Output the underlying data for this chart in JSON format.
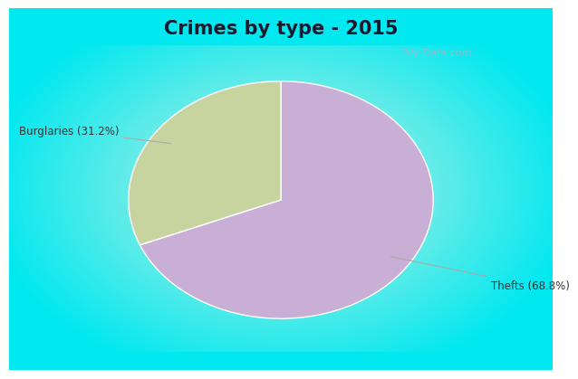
{
  "title": "Crimes by type - 2015",
  "slices": [
    68.8,
    31.2
  ],
  "labels": [
    "Thefts (68.8%)",
    "Burglaries (31.2%)"
  ],
  "colors": [
    "#c9aed6",
    "#c8d4a0"
  ],
  "bg_cyan": "#00e8f0",
  "bg_mint": "#d0f0e0",
  "title_fontsize": 15,
  "label_fontsize": 8.5,
  "startangle": 90,
  "watermark": "City-Data.com"
}
